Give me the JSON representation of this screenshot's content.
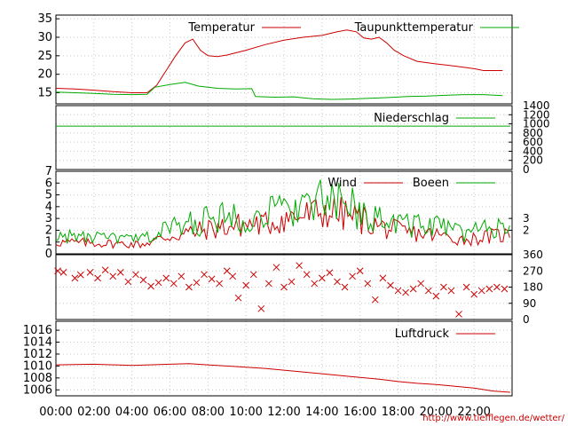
{
  "chart_data": [
    {
      "type": "line",
      "panel": "temperature",
      "ylim": [
        12,
        36
      ],
      "y_ticks": [
        "15",
        "20",
        "25",
        "30",
        "35"
      ],
      "series": [
        {
          "name": "Temperatur",
          "color": "#cc0000",
          "points": [
            [
              0,
              16.2
            ],
            [
              1,
              16.0
            ],
            [
              2,
              15.7
            ],
            [
              3,
              15.3
            ],
            [
              4,
              15.0
            ],
            [
              4.8,
              15.0
            ],
            [
              5.3,
              17.0
            ],
            [
              5.8,
              21.0
            ],
            [
              6.3,
              25.0
            ],
            [
              6.8,
              28.5
            ],
            [
              7.2,
              29.5
            ],
            [
              7.6,
              26.5
            ],
            [
              8.0,
              25.0
            ],
            [
              8.5,
              24.8
            ],
            [
              9,
              25.2
            ],
            [
              10,
              26.5
            ],
            [
              11,
              28.0
            ],
            [
              12,
              29.2
            ],
            [
              13,
              30.0
            ],
            [
              14,
              30.5
            ],
            [
              14.8,
              31.5
            ],
            [
              15.3,
              32.0
            ],
            [
              15.8,
              31.5
            ],
            [
              16.2,
              29.8
            ],
            [
              16.6,
              29.5
            ],
            [
              17.0,
              30.0
            ],
            [
              17.4,
              28.5
            ],
            [
              17.8,
              26.5
            ],
            [
              18.3,
              25.0
            ],
            [
              19,
              23.5
            ],
            [
              20,
              22.8
            ],
            [
              21,
              22.2
            ],
            [
              22,
              21.5
            ],
            [
              22.5,
              21.0
            ],
            [
              23.5,
              21.0
            ]
          ]
        },
        {
          "name": "Taupunkttemperatur",
          "color": "#00aa00",
          "points": [
            [
              0,
              15.2
            ],
            [
              1,
              15.0
            ],
            [
              2,
              14.8
            ],
            [
              3,
              14.6
            ],
            [
              4,
              14.5
            ],
            [
              4.8,
              14.6
            ],
            [
              5.2,
              16.5
            ],
            [
              6,
              17.2
            ],
            [
              6.8,
              17.8
            ],
            [
              7.5,
              16.8
            ],
            [
              8.5,
              16.2
            ],
            [
              9.5,
              16.0
            ],
            [
              10.3,
              16.1
            ],
            [
              10.5,
              14.0
            ],
            [
              11.5,
              13.8
            ],
            [
              12.5,
              13.9
            ],
            [
              13.5,
              13.4
            ],
            [
              14.5,
              13.2
            ],
            [
              15.5,
              13.3
            ],
            [
              16.5,
              13.5
            ],
            [
              17.5,
              13.7
            ],
            [
              18.5,
              14.0
            ],
            [
              19.5,
              14.1
            ],
            [
              20.5,
              14.3
            ],
            [
              21.5,
              14.5
            ],
            [
              22.5,
              14.5
            ],
            [
              23.5,
              14.2
            ]
          ]
        }
      ]
    },
    {
      "type": "line",
      "panel": "precipitation",
      "ylim": [
        0,
        1400
      ],
      "y_ticks_right": [
        "1400",
        "1200",
        "1000",
        "800",
        "600",
        "400",
        "200",
        "0"
      ],
      "series": [
        {
          "name": "Niederschlag",
          "color": "#00aa00",
          "points": [
            [
              0,
              950
            ],
            [
              23.9,
              950
            ]
          ]
        }
      ]
    },
    {
      "type": "line",
      "panel": "wind",
      "ylim": [
        0,
        7
      ],
      "y_ticks": [
        "0",
        "1",
        "2",
        "3",
        "4",
        "5",
        "6",
        "7"
      ],
      "y_ticks_right": [
        "2",
        "3"
      ],
      "series": [
        {
          "name": "Wind",
          "color": "#cc0000",
          "profile": [
            [
              0,
              1.0
            ],
            [
              4.5,
              0.8
            ],
            [
              6,
              1.5
            ],
            [
              8.5,
              2.2
            ],
            [
              10,
              2.5
            ],
            [
              11,
              2.5
            ],
            [
              12,
              3.0
            ],
            [
              13,
              3.2
            ],
            [
              14.3,
              3.6
            ],
            [
              16,
              3.0
            ],
            [
              17,
              2.3
            ],
            [
              18.5,
              1.8
            ],
            [
              20,
              1.6
            ],
            [
              21.5,
              1.2
            ],
            [
              23.5,
              1.6
            ]
          ]
        },
        {
          "name": "Boeen",
          "color": "#00aa00",
          "profile": [
            [
              0,
              1.5
            ],
            [
              4.5,
              1.2
            ],
            [
              6,
              2.2
            ],
            [
              8.5,
              3.0
            ],
            [
              10,
              3.3
            ],
            [
              11,
              3.3
            ],
            [
              12,
              3.8
            ],
            [
              13,
              4.2
            ],
            [
              14.3,
              4.4
            ],
            [
              16,
              3.7
            ],
            [
              17,
              3.0
            ],
            [
              18.5,
              2.5
            ],
            [
              20,
              2.3
            ],
            [
              21.5,
              1.8
            ],
            [
              23.5,
              2.2
            ]
          ]
        }
      ]
    },
    {
      "type": "scatter",
      "panel": "wind-direction",
      "ylim": [
        0,
        360
      ],
      "y_ticks_right": [
        "360",
        "270",
        "180",
        "90",
        "0"
      ],
      "series": [
        {
          "name": "",
          "color": "#cc0000",
          "marker": "x",
          "points": [
            [
              0.1,
              270
            ],
            [
              0.4,
              262
            ],
            [
              1.0,
              230
            ],
            [
              1.3,
              248
            ],
            [
              1.8,
              262
            ],
            [
              2.2,
              230
            ],
            [
              2.6,
              275
            ],
            [
              3.0,
              240
            ],
            [
              3.4,
              262
            ],
            [
              3.8,
              210
            ],
            [
              4.2,
              250
            ],
            [
              4.6,
              220
            ],
            [
              5.0,
              185
            ],
            [
              5.4,
              205
            ],
            [
              5.8,
              230
            ],
            [
              6.2,
              200
            ],
            [
              6.6,
              240
            ],
            [
              7.0,
              180
            ],
            [
              7.4,
              205
            ],
            [
              7.8,
              250
            ],
            [
              8.2,
              225
            ],
            [
              8.6,
              200
            ],
            [
              9.0,
              270
            ],
            [
              9.3,
              240
            ],
            [
              9.6,
              120
            ],
            [
              10.0,
              190
            ],
            [
              10.4,
              250
            ],
            [
              10.8,
              60
            ],
            [
              11.2,
              200
            ],
            [
              11.6,
              290
            ],
            [
              12.0,
              180
            ],
            [
              12.4,
              210
            ],
            [
              12.8,
              300
            ],
            [
              13.2,
              250
            ],
            [
              13.6,
              200
            ],
            [
              14.0,
              230
            ],
            [
              14.4,
              260
            ],
            [
              14.8,
              210
            ],
            [
              15.2,
              180
            ],
            [
              15.6,
              240
            ],
            [
              16.0,
              270
            ],
            [
              16.4,
              200
            ],
            [
              16.8,
              110
            ],
            [
              17.2,
              230
            ],
            [
              17.6,
              190
            ],
            [
              18.0,
              160
            ],
            [
              18.4,
              150
            ],
            [
              18.8,
              170
            ],
            [
              19.2,
              200
            ],
            [
              19.6,
              160
            ],
            [
              20.0,
              130
            ],
            [
              20.4,
              180
            ],
            [
              20.8,
              160
            ],
            [
              21.2,
              30
            ],
            [
              21.6,
              180
            ],
            [
              22.0,
              140
            ],
            [
              22.4,
              160
            ],
            [
              22.8,
              170
            ],
            [
              23.2,
              180
            ],
            [
              23.6,
              170
            ]
          ]
        }
      ]
    },
    {
      "type": "line",
      "panel": "pressure",
      "ylim": [
        1005,
        1017.5
      ],
      "y_ticks": [
        "1006",
        "1008",
        "1010",
        "1012",
        "1014",
        "1016"
      ],
      "series": [
        {
          "name": "Luftdruck",
          "color": "#cc0000",
          "points": [
            [
              0,
              1010.2
            ],
            [
              2,
              1010.3
            ],
            [
              4,
              1010.1
            ],
            [
              6,
              1010.3
            ],
            [
              7,
              1010.4
            ],
            [
              8,
              1010.2
            ],
            [
              9,
              1010.0
            ],
            [
              10,
              1009.8
            ],
            [
              11,
              1009.6
            ],
            [
              12,
              1009.3
            ],
            [
              13,
              1009.0
            ],
            [
              14,
              1008.7
            ],
            [
              15,
              1008.4
            ],
            [
              16,
              1008.1
            ],
            [
              17,
              1007.8
            ],
            [
              18,
              1007.4
            ],
            [
              19,
              1007.1
            ],
            [
              20,
              1006.9
            ],
            [
              21,
              1006.6
            ],
            [
              22,
              1006.3
            ],
            [
              23,
              1005.8
            ],
            [
              23.9,
              1005.6
            ]
          ]
        }
      ]
    }
  ],
  "x_ticks": [
    "00:00",
    "02:00",
    "04:00",
    "06:00",
    "08:00",
    "10:00",
    "12:00",
    "14:00",
    "16:00",
    "18:00",
    "20:00",
    "22:00"
  ],
  "credit": "http://www.tiefflegen.de/wetter/"
}
